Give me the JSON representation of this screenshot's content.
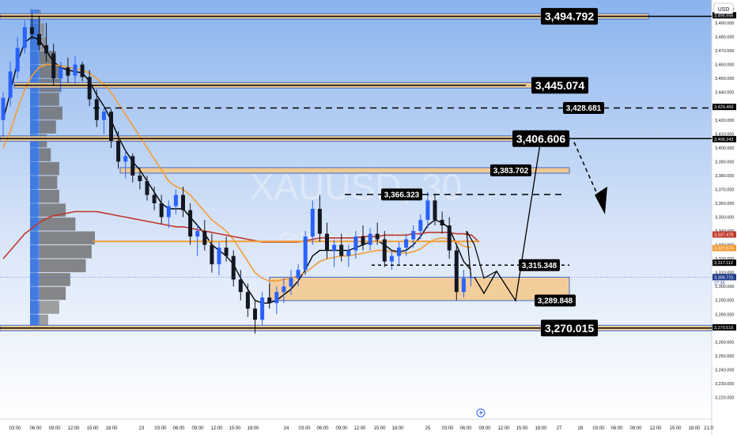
{
  "chart_data": {
    "type": "candlestick",
    "symbol_watermark": "XAUUSD, 30",
    "subtitle_watermark": "Gold Spot / U.S. Dollar",
    "currency": "USD",
    "ylim": [
      3210,
      3502
    ],
    "y_ticks": [
      3500,
      3490,
      3480,
      3470,
      3460,
      3450,
      3440,
      3430,
      3420,
      3410,
      3400,
      3390,
      3380,
      3370,
      3360,
      3350,
      3340,
      3330,
      3320,
      3310,
      3300,
      3290,
      3280,
      3270,
      3260,
      3250,
      3240,
      3230,
      3220
    ],
    "x_ticks": [
      "03:00",
      "06:00",
      "09:00",
      "12:00",
      "15:00",
      "18:00",
      "23",
      "03:00",
      "06:00",
      "09:00",
      "12:00",
      "15:00",
      "18:00",
      "24",
      "03:00",
      "06:00",
      "09:00",
      "12:00",
      "15:00",
      "18:00",
      "25",
      "03:00",
      "06:00",
      "09:00",
      "12:00",
      "15:00",
      "18:00",
      "27",
      "28",
      "03:00",
      "06:00",
      "09:00",
      "12:00",
      "15:00",
      "18:00",
      "21:0"
    ],
    "axis_badges": [
      {
        "value": 3495.556,
        "label": "3,495.556",
        "bg": "#000000",
        "fg": "#ffffff"
      },
      {
        "value": 3429.469,
        "label": "3,429.469",
        "bg": "#000000",
        "fg": "#ffffff"
      },
      {
        "value": 3406.243,
        "label": "3,406.243",
        "bg": "#000000",
        "fg": "#ffffff"
      },
      {
        "value": 3337.478,
        "label": "3,337.478",
        "bg": "#c0392b",
        "fg": "#ffffff"
      },
      {
        "value": 3327.674,
        "label": "3,327.674",
        "bg": "#f39c34",
        "fg": "#ffffff"
      },
      {
        "value": 3317.112,
        "label": "3,317.112",
        "bg": "#000000",
        "fg": "#ffffff"
      },
      {
        "value": 3306.715,
        "label": "3,306.715",
        "bg": "#1e3a8a",
        "fg": "#ffffff"
      },
      {
        "value": 3270.515,
        "label": "3,270.515",
        "bg": "#000000",
        "fg": "#ffffff"
      }
    ],
    "countdown": "27:35",
    "levels": [
      {
        "value": 3494.792,
        "label": "3,494.792",
        "style": "solid",
        "zone": true
      },
      {
        "value": 3445.074,
        "label": "3,445.074",
        "style": "solid",
        "zone": true
      },
      {
        "value": 3428.681,
        "label": "3,428.681",
        "style": "dashed",
        "zone": false
      },
      {
        "value": 3406.606,
        "label": "3,406.606",
        "style": "solid",
        "zone": true
      },
      {
        "value": 3383.702,
        "label": "3,383.702",
        "style": "zone-only",
        "zone": true
      },
      {
        "value": 3366.323,
        "label": "3,366.323",
        "style": "dashed",
        "zone": false
      },
      {
        "value": 3315.348,
        "label": "3,315.348",
        "style": "dashed",
        "zone": false
      },
      {
        "value": 3289.848,
        "label": "3,289.848",
        "style": "zone-only",
        "zone": false
      },
      {
        "value": 3270.015,
        "label": "3,270.015",
        "style": "solid",
        "zone": true
      }
    ],
    "demand_zone": {
      "from": 3289.8,
      "to": 3306.7
    },
    "projection": [
      3306.7,
      3295.0,
      3311.0,
      3289.8,
      3406.6
    ],
    "projection_alt": "down",
    "candles": [
      [
        3420,
        3440,
        3408,
        3436
      ],
      [
        3436,
        3462,
        3430,
        3455
      ],
      [
        3455,
        3480,
        3450,
        3472
      ],
      [
        3472,
        3492,
        3468,
        3487
      ],
      [
        3487,
        3497,
        3478,
        3482
      ],
      [
        3482,
        3495,
        3470,
        3474
      ],
      [
        3474,
        3490,
        3462,
        3468
      ],
      [
        3468,
        3475,
        3445,
        3450
      ],
      [
        3450,
        3462,
        3440,
        3458
      ],
      [
        3458,
        3465,
        3447,
        3452
      ],
      [
        3452,
        3466,
        3446,
        3460
      ],
      [
        3460,
        3462,
        3448,
        3451
      ],
      [
        3451,
        3456,
        3430,
        3435
      ],
      [
        3435,
        3442,
        3415,
        3420
      ],
      [
        3420,
        3430,
        3410,
        3426
      ],
      [
        3426,
        3428,
        3400,
        3405
      ],
      [
        3405,
        3412,
        3385,
        3390
      ],
      [
        3390,
        3398,
        3378,
        3394
      ],
      [
        3394,
        3396,
        3375,
        3380
      ],
      [
        3380,
        3386,
        3370,
        3376
      ],
      [
        3376,
        3380,
        3362,
        3366
      ],
      [
        3366,
        3372,
        3355,
        3360
      ],
      [
        3360,
        3366,
        3345,
        3350
      ],
      [
        3350,
        3362,
        3342,
        3358
      ],
      [
        3358,
        3370,
        3352,
        3366
      ],
      [
        3366,
        3372,
        3350,
        3355
      ],
      [
        3355,
        3360,
        3330,
        3336
      ],
      [
        3336,
        3345,
        3322,
        3340
      ],
      [
        3340,
        3348,
        3326,
        3330
      ],
      [
        3330,
        3338,
        3310,
        3316
      ],
      [
        3316,
        3332,
        3308,
        3328
      ],
      [
        3328,
        3336,
        3318,
        3322
      ],
      [
        3322,
        3326,
        3300,
        3305
      ],
      [
        3305,
        3312,
        3290,
        3296
      ],
      [
        3296,
        3302,
        3278,
        3284
      ],
      [
        3284,
        3290,
        3266,
        3276
      ],
      [
        3276,
        3296,
        3272,
        3292
      ],
      [
        3292,
        3302,
        3284,
        3288
      ],
      [
        3288,
        3300,
        3280,
        3296
      ],
      [
        3296,
        3306,
        3288,
        3300
      ],
      [
        3300,
        3312,
        3294,
        3306
      ],
      [
        3306,
        3316,
        3300,
        3312
      ],
      [
        3312,
        3340,
        3308,
        3336
      ],
      [
        3336,
        3362,
        3330,
        3356
      ],
      [
        3356,
        3366,
        3332,
        3338
      ],
      [
        3338,
        3346,
        3320,
        3326
      ],
      [
        3326,
        3334,
        3314,
        3330
      ],
      [
        3330,
        3338,
        3318,
        3322
      ],
      [
        3322,
        3330,
        3314,
        3326
      ],
      [
        3326,
        3340,
        3320,
        3336
      ],
      [
        3336,
        3344,
        3326,
        3330
      ],
      [
        3330,
        3342,
        3326,
        3338
      ],
      [
        3338,
        3346,
        3330,
        3334
      ],
      [
        3334,
        3340,
        3314,
        3318
      ],
      [
        3318,
        3326,
        3312,
        3322
      ],
      [
        3322,
        3332,
        3316,
        3328
      ],
      [
        3328,
        3338,
        3322,
        3334
      ],
      [
        3334,
        3344,
        3328,
        3340
      ],
      [
        3340,
        3352,
        3334,
        3348
      ],
      [
        3348,
        3368,
        3342,
        3362
      ],
      [
        3362,
        3366,
        3344,
        3348
      ],
      [
        3348,
        3354,
        3338,
        3344
      ],
      [
        3344,
        3350,
        3320,
        3326
      ],
      [
        3326,
        3330,
        3290,
        3296
      ],
      [
        3296,
        3312,
        3292,
        3306
      ],
      [
        3306,
        3310,
        3300,
        3307
      ]
    ],
    "moving_averages": [
      {
        "name": "",
        "color": "#000000",
        "values": [
          3420,
          3440,
          3462,
          3476,
          3480,
          3478,
          3470,
          3462,
          3458,
          3456,
          3455,
          3454,
          3448,
          3438,
          3430,
          3420,
          3408,
          3398,
          3390,
          3384,
          3376,
          3368,
          3360,
          3356,
          3356,
          3356,
          3350,
          3344,
          3338,
          3330,
          3326,
          3322,
          3316,
          3306,
          3298,
          3290,
          3288,
          3288,
          3290,
          3294,
          3298,
          3304,
          3312,
          3322,
          3326,
          3326,
          3326,
          3326,
          3326,
          3328,
          3330,
          3332,
          3333,
          3330,
          3326,
          3325,
          3326,
          3330,
          3336,
          3344,
          3348,
          3346,
          3342,
          3330,
          3318,
          3312
        ]
      },
      {
        "name": "",
        "color": "#f39c34",
        "values": [
          3400,
          3412,
          3428,
          3442,
          3452,
          3458,
          3460,
          3460,
          3459,
          3458,
          3457,
          3456,
          3454,
          3450,
          3446,
          3440,
          3432,
          3424,
          3416,
          3408,
          3400,
          3392,
          3384,
          3376,
          3372,
          3370,
          3366,
          3360,
          3354,
          3348,
          3344,
          3340,
          3334,
          3326,
          3318,
          3310,
          3306,
          3304,
          3304,
          3305,
          3306,
          3308,
          3310,
          3314,
          3318,
          3320,
          3321,
          3322,
          3322,
          3323,
          3324,
          3325,
          3326,
          3326,
          3325,
          3324,
          3324,
          3325,
          3327,
          3331,
          3334,
          3335,
          3334,
          3332,
          3329,
          3328
        ]
      },
      {
        "name": "",
        "color": "#c0392b",
        "values": [
          3320,
          3326,
          3332,
          3338,
          3342,
          3346,
          3349,
          3351,
          3352,
          3353,
          3354,
          3354,
          3354,
          3354,
          3353,
          3352,
          3351,
          3350,
          3349,
          3348,
          3347,
          3346,
          3345,
          3344,
          3343,
          3343,
          3342,
          3341,
          3340,
          3339,
          3338,
          3337,
          3336,
          3335,
          3334,
          3333,
          3332,
          3332,
          3332,
          3332,
          3332,
          3332,
          3333,
          3334,
          3335,
          3335,
          3335,
          3335,
          3335,
          3335,
          3336,
          3336,
          3336,
          3337,
          3337,
          3337,
          3337,
          3338,
          3338,
          3339,
          3339,
          3339,
          3339,
          3338,
          3338,
          3337
        ]
      }
    ],
    "volume_profile": [
      {
        "price": 3495,
        "width": 0.17
      },
      {
        "price": 3485,
        "width": 0.22
      },
      {
        "price": 3475,
        "width": 0.26
      },
      {
        "price": 3465,
        "width": 0.4
      },
      {
        "price": 3455,
        "width": 0.5
      },
      {
        "price": 3445,
        "width": 0.47
      },
      {
        "price": 3435,
        "width": 0.45
      },
      {
        "price": 3425,
        "width": 0.5
      },
      {
        "price": 3415,
        "width": 0.4
      },
      {
        "price": 3405,
        "width": 0.26
      },
      {
        "price": 3395,
        "width": 0.32
      },
      {
        "price": 3385,
        "width": 0.45
      },
      {
        "price": 3375,
        "width": 0.42
      },
      {
        "price": 3365,
        "width": 0.45
      },
      {
        "price": 3355,
        "width": 0.55
      },
      {
        "price": 3345,
        "width": 0.7
      },
      {
        "price": 3335,
        "width": 1.0
      },
      {
        "price": 3325,
        "width": 0.95
      },
      {
        "price": 3315,
        "width": 0.86
      },
      {
        "price": 3305,
        "width": 0.62
      },
      {
        "price": 3295,
        "width": 0.55
      },
      {
        "price": 3285,
        "width": 0.45
      },
      {
        "price": 3275,
        "width": 0.28
      }
    ]
  }
}
